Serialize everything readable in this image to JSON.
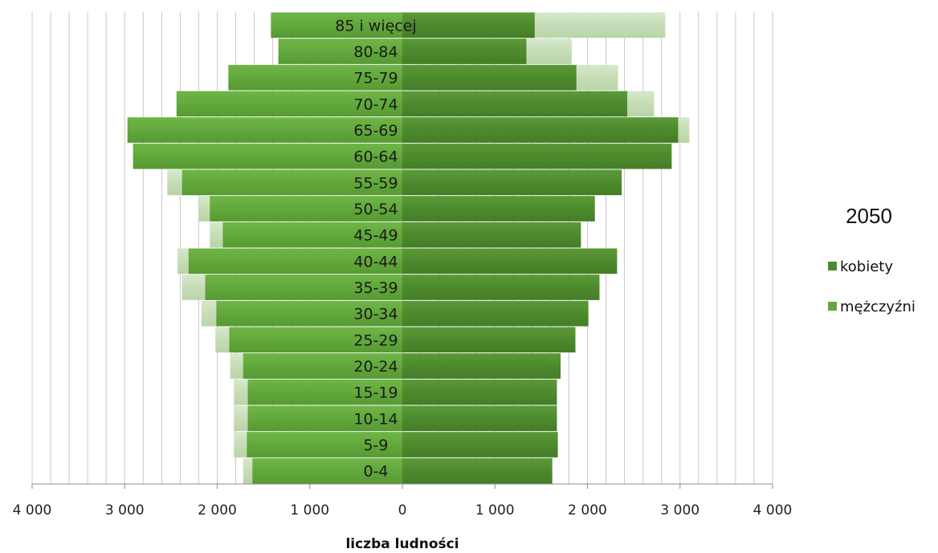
{
  "chart_data": {
    "type": "bar",
    "orientation": "horizontal",
    "title": "2050",
    "xlabel": "liczba ludności",
    "xlim": [
      -4000,
      4000
    ],
    "x_ticks": [
      -4000,
      -3000,
      -2000,
      -1000,
      0,
      1000,
      2000,
      3000,
      4000
    ],
    "x_tick_labels": [
      "4 000",
      "3 000",
      "2 000",
      "1 000",
      "0",
      "1 000",
      "2 000",
      "3 000",
      "4 000"
    ],
    "grid": true,
    "legend_position": "right",
    "categories": [
      "0-4",
      "5-9",
      "10-14",
      "15-19",
      "20-24",
      "25-29",
      "30-34",
      "35-39",
      "40-44",
      "45-49",
      "50-54",
      "55-59",
      "60-64",
      "65-69",
      "70-74",
      "75-79",
      "80-84",
      "85 i więcej"
    ],
    "series": [
      {
        "name": "kobiety",
        "side": "right",
        "color": "#4e8a2e",
        "values": [
          1620,
          1680,
          1670,
          1670,
          1710,
          1870,
          2010,
          2130,
          2320,
          1930,
          2080,
          2370,
          2910,
          2980,
          2430,
          1880,
          1340,
          1430
        ],
        "comparison_values": [
          1620,
          1680,
          1670,
          1670,
          1710,
          1870,
          2010,
          2130,
          2320,
          1930,
          2080,
          2370,
          2910,
          3100,
          2720,
          2330,
          1830,
          2840
        ]
      },
      {
        "name": "mężczyźni",
        "side": "left",
        "color": "#62a83c",
        "values": [
          1620,
          1680,
          1670,
          1670,
          1720,
          1870,
          2010,
          2130,
          2310,
          1940,
          2080,
          2380,
          2910,
          2970,
          2440,
          1880,
          1340,
          1420
        ],
        "comparison_values": [
          1720,
          1820,
          1820,
          1820,
          1860,
          2020,
          2170,
          2380,
          2430,
          2080,
          2200,
          2540,
          2910,
          2970,
          2440,
          1880,
          1340,
          1420
        ]
      }
    ]
  },
  "colors": {
    "female_bar": "#4e8a2e",
    "male_bar": "#62a83c",
    "comparison_overlay": "#c9dfbb",
    "gridline": "#c8c8c8",
    "axis": "#8c8c8c"
  },
  "legend": {
    "title": "2050",
    "items": [
      {
        "label": "kobiety",
        "color": "#4e8a2e"
      },
      {
        "label": "mężczyźni",
        "color": "#62a83c"
      }
    ]
  }
}
